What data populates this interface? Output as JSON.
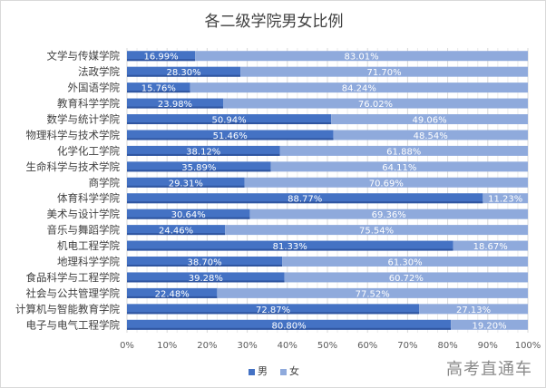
{
  "chart_data": {
    "type": "bar",
    "stacked": true,
    "orientation": "horizontal",
    "title": "各二级学院男女比例",
    "categories": [
      "文学与传媒学院",
      "法政学院",
      "外国语学院",
      "教育科学学院",
      "数学与统计学院",
      "物理科学与技术学院",
      "化学化工学院",
      "生命科学与技术学院",
      "商学院",
      "体育科学学院",
      "美术与设计学院",
      "音乐与舞蹈学院",
      "机电工程学院",
      "地理科学学院",
      "食品科学与工程学院",
      "社会与公共管理学院",
      "计算机与智能教育学院",
      "电子与电气工程学院"
    ],
    "series": [
      {
        "name": "男",
        "color": "#4472c4",
        "values": [
          16.99,
          28.3,
          15.76,
          23.98,
          50.94,
          51.46,
          38.12,
          35.89,
          29.31,
          88.77,
          30.64,
          24.46,
          81.33,
          38.7,
          39.28,
          22.48,
          72.87,
          80.8
        ]
      },
      {
        "name": "女",
        "color": "#8faadc",
        "values": [
          83.01,
          71.7,
          84.24,
          76.02,
          49.06,
          48.54,
          61.88,
          64.11,
          70.69,
          11.23,
          69.36,
          75.54,
          18.67,
          61.3,
          60.72,
          77.52,
          27.13,
          19.2
        ]
      }
    ],
    "xlim": [
      0,
      100
    ],
    "xticks": [
      "0%",
      "10%",
      "20%",
      "30%",
      "40%",
      "50%",
      "60%",
      "70%",
      "80%",
      "90%",
      "100%"
    ],
    "grid": true,
    "legend": "bottom"
  },
  "watermark": "高考直通车"
}
